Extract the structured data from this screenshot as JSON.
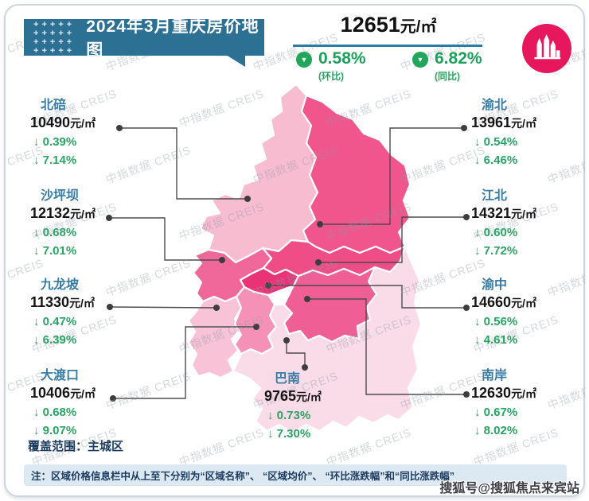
{
  "header": {
    "title": "2024年3月重庆房价地图"
  },
  "summary": {
    "price": "12651",
    "unit": "元/㎡",
    "mom": {
      "value": "0.58%",
      "label": "(环比)"
    },
    "yoy": {
      "value": "6.82%",
      "label": "(同比)"
    }
  },
  "districts": [
    {
      "id": "beibei",
      "name": "北碚",
      "price": "10490",
      "unit": "元/㎡",
      "mom": "↓ 0.39%",
      "yoy": "↓ 7.14%"
    },
    {
      "id": "shapingba",
      "name": "沙坪坝",
      "price": "12132",
      "unit": "元/㎡",
      "mom": "↓ 0.68%",
      "yoy": "↓ 7.01%"
    },
    {
      "id": "jiulongpo",
      "name": "九龙坡",
      "price": "11330",
      "unit": "元/㎡",
      "mom": "↓ 0.47%",
      "yoy": "↓ 6.39%"
    },
    {
      "id": "dadukou",
      "name": "大渡口",
      "price": "10406",
      "unit": "元/㎡",
      "mom": "↓ 0.68%",
      "yoy": "↓ 9.07%"
    },
    {
      "id": "yubei",
      "name": "渝北",
      "price": "13961",
      "unit": "元/㎡",
      "mom": "↓ 0.54%",
      "yoy": "↓ 6.46%"
    },
    {
      "id": "jiangbei",
      "name": "江北",
      "price": "14321",
      "unit": "元/㎡",
      "mom": "↓ 0.60%",
      "yoy": "↓ 7.72%"
    },
    {
      "id": "yuzhong",
      "name": "渝中",
      "price": "14660",
      "unit": "元/㎡",
      "mom": "↓ 0.56%",
      "yoy": "↓ 4.61%"
    },
    {
      "id": "nanan",
      "name": "南岸",
      "price": "12630",
      "unit": "元/㎡",
      "mom": "↓ 0.67%",
      "yoy": "↓ 8.02%"
    },
    {
      "id": "banan",
      "name": "巴南",
      "price": "9765",
      "unit": "元/㎡",
      "mom": "↓ 0.73%",
      "yoy": "↓ 7.30%"
    }
  ],
  "coverage": {
    "label": "覆盖范围：主城区"
  },
  "note": "注：区域价格信息栏中从上至下分别为“区域名称”、 “区域均价”、 “环比涨跌幅”和“同比涨跌幅”",
  "watermark": {
    "text": "中指数据 CREIS",
    "sohu": "搜狐号@搜狐焦点来宾站"
  },
  "colors": {
    "header_bg": "#2c7093",
    "accent_line": "#2b7ca3",
    "district_name": "#387ba3",
    "green": "#1fa45c",
    "navy": "#1c3c60",
    "note_bg": "#dce8f2",
    "logo_bg": "#e6175c",
    "callout": "#4d4d4d",
    "map": {
      "beibei": "#f8bcd1",
      "yubei": "#f0558b",
      "shapingba": "#ef6899",
      "jiangbei": "#ee4d85",
      "yuzhong": "#e93377",
      "jiulongpo": "#f8c3d6",
      "dadukou": "#f591b6",
      "nanan": "#ef5f96",
      "banan": "#fadce8"
    }
  }
}
